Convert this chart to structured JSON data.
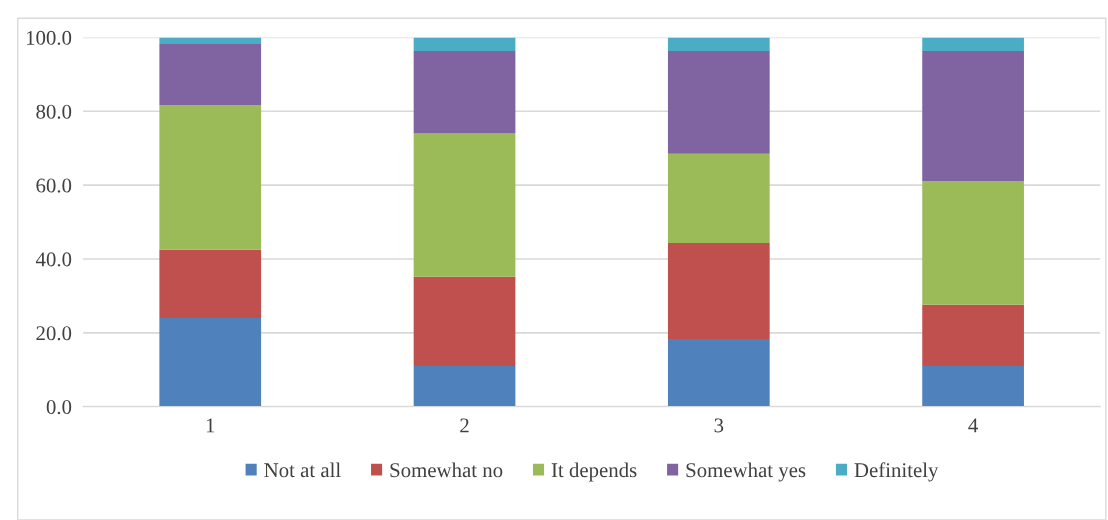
{
  "chart_data": {
    "type": "bar",
    "stacked": true,
    "categories": [
      "1",
      "2",
      "3",
      "4"
    ],
    "series": [
      {
        "name": "Not at all",
        "color": "#4f81bd",
        "values": [
          24.0,
          11.0,
          18.3,
          11.0
        ]
      },
      {
        "name": "Somewhat no",
        "color": "#c0504d",
        "values": [
          18.5,
          24.2,
          26.0,
          16.6
        ]
      },
      {
        "name": "It depends",
        "color": "#9bbb59",
        "values": [
          39.2,
          38.8,
          24.2,
          33.5
        ]
      },
      {
        "name": "Somewhat yes",
        "color": "#8064a2",
        "values": [
          16.5,
          22.3,
          27.8,
          35.2
        ]
      },
      {
        "name": "Definitely",
        "color": "#4bacc6",
        "values": [
          1.8,
          3.7,
          3.7,
          3.7
        ]
      }
    ],
    "ylim": [
      0,
      100
    ],
    "yticks": [
      {
        "value": 0,
        "label": "0.0"
      },
      {
        "value": 20,
        "label": "20.0"
      },
      {
        "value": 40,
        "label": "40.0"
      },
      {
        "value": 60,
        "label": "60.0"
      },
      {
        "value": 80,
        "label": "80.0"
      },
      {
        "value": 100,
        "label": "100.0"
      }
    ],
    "grid": "y",
    "legend": "bottom"
  }
}
